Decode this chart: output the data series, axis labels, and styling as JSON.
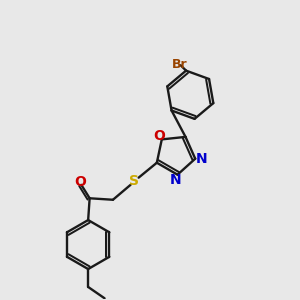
{
  "bg_color": "#e8e8e8",
  "bond_color": "#1a1a1a",
  "br_color": "#994400",
  "o_color": "#cc0000",
  "n_color": "#0000cc",
  "s_color": "#ccaa00",
  "lw": 1.7,
  "inner_off": 0.1,
  "fig_w": 3.0,
  "fig_h": 3.0,
  "dpi": 100,
  "xlim": [
    0,
    10
  ],
  "ylim": [
    0,
    10
  ]
}
